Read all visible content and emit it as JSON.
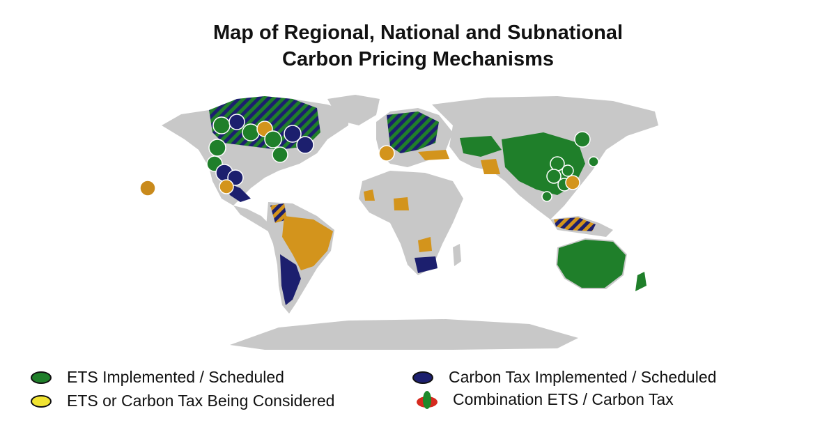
{
  "title": {
    "line1": "Map of Regional, National and Subnational",
    "line2": "Carbon Pricing Mechanisms"
  },
  "colors": {
    "land": "#c8c8c8",
    "ets": "#1f7f2a",
    "tax": "#1c1f6e",
    "considered": "#d3941c",
    "combo_red": "#d62a1f",
    "combo_green": "#1e8a2b"
  },
  "legend": {
    "ets": "ETS Implemented / Scheduled",
    "considered": "ETS or Carbon Tax Being Considered",
    "tax": "Carbon Tax Implemented / Scheduled",
    "combination": "Combination ETS / Carbon Tax"
  }
}
